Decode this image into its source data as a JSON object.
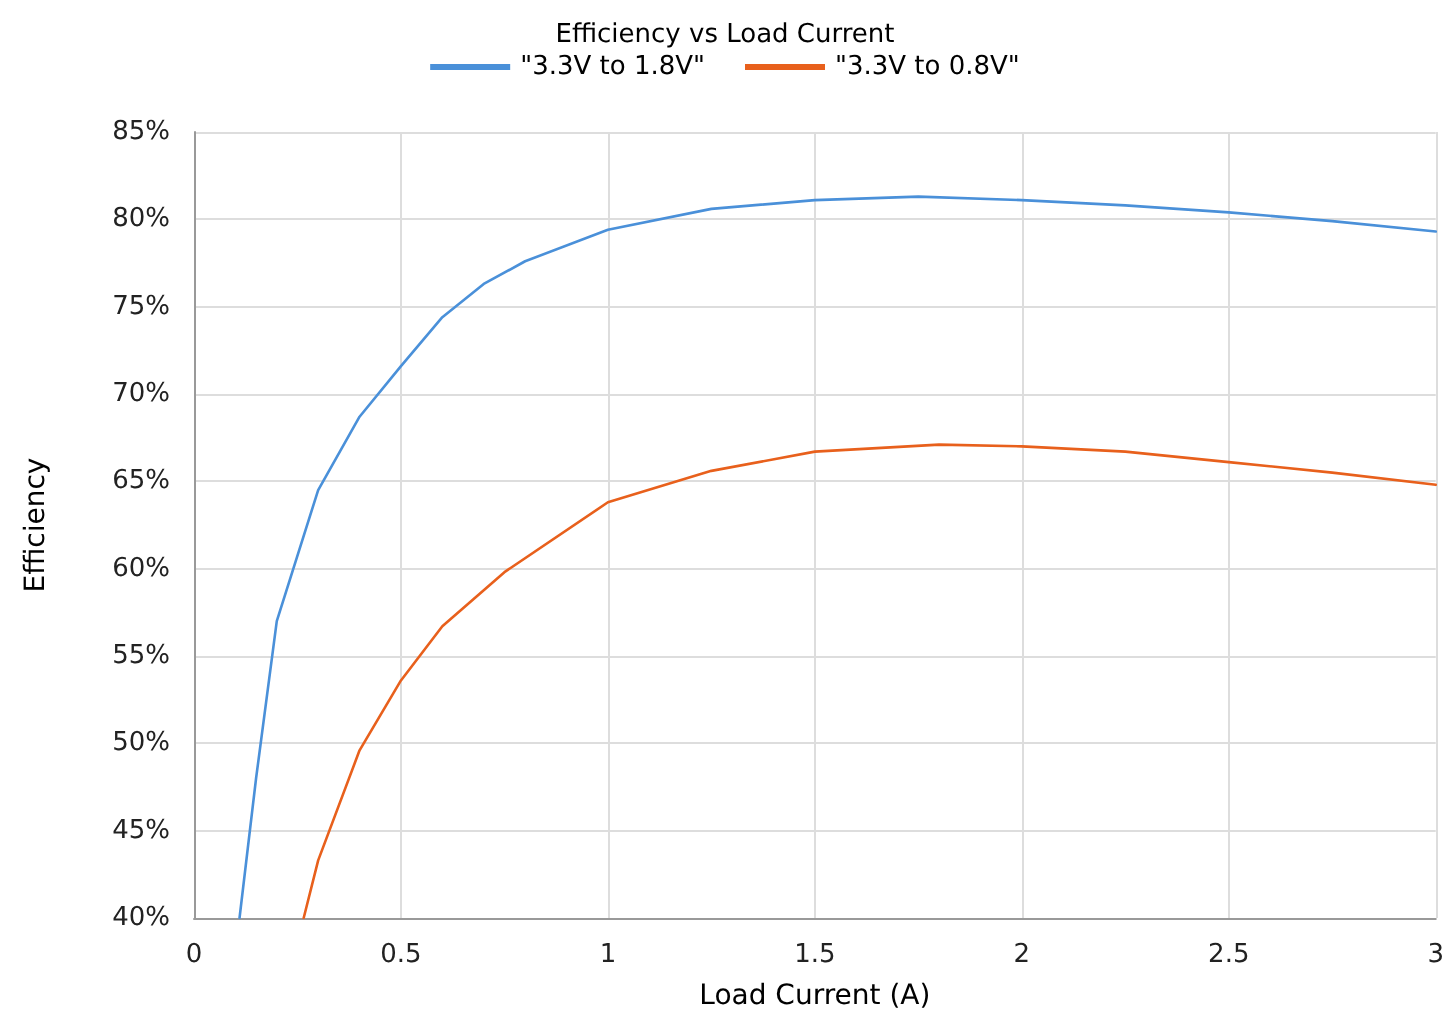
{
  "chart_data": {
    "type": "line",
    "title": "Efficiency vs Load Current",
    "xlabel": "Load Current (A)",
    "ylabel": "Efficiency",
    "xlim": [
      0,
      3
    ],
    "xticks": [
      0,
      0.5,
      1,
      1.5,
      2,
      2.5,
      3
    ],
    "ylim": [
      40,
      85
    ],
    "yticks": [
      {
        "value": 40,
        "label": "40%"
      },
      {
        "value": 45,
        "label": "45%"
      },
      {
        "value": 50,
        "label": "50%"
      },
      {
        "value": 55,
        "label": "55%"
      },
      {
        "value": 60,
        "label": "60%"
      },
      {
        "value": 65,
        "label": "65%"
      },
      {
        "value": 70,
        "label": "70%"
      },
      {
        "value": 75,
        "label": "75%"
      },
      {
        "value": 80,
        "label": "80%"
      },
      {
        "value": 85,
        "label": "85%"
      }
    ],
    "grid": true,
    "legend": "top",
    "marker": "none",
    "line_style": "solid",
    "series": [
      {
        "name": "\"3.3V to 1.8V\"",
        "color": "#4a90d9",
        "x": [
          0.11,
          0.15,
          0.2,
          0.3,
          0.4,
          0.5,
          0.6,
          0.7,
          0.8,
          1,
          1.25,
          1.5,
          1.75,
          2,
          2.25,
          2.5,
          2.75,
          3
        ],
        "values": [
          40,
          48,
          57,
          64.5,
          68.7,
          71.6,
          74.4,
          76.3,
          77.6,
          79.4,
          80.6,
          81.1,
          81.3,
          81.1,
          80.8,
          80.4,
          79.9,
          79.3
        ]
      },
      {
        "name": "\"3.3V to 0.8V\"",
        "color": "#e8601c",
        "x": [
          0.265,
          0.3,
          0.4,
          0.5,
          0.6,
          0.75,
          1,
          1.25,
          1.5,
          1.8,
          2,
          2.25,
          2.5,
          2.75,
          3
        ],
        "values": [
          40,
          43.3,
          49.6,
          53.6,
          56.7,
          59.8,
          63.8,
          65.6,
          66.7,
          67.1,
          67,
          66.7,
          66.1,
          65.5,
          64.8
        ]
      }
    ]
  }
}
